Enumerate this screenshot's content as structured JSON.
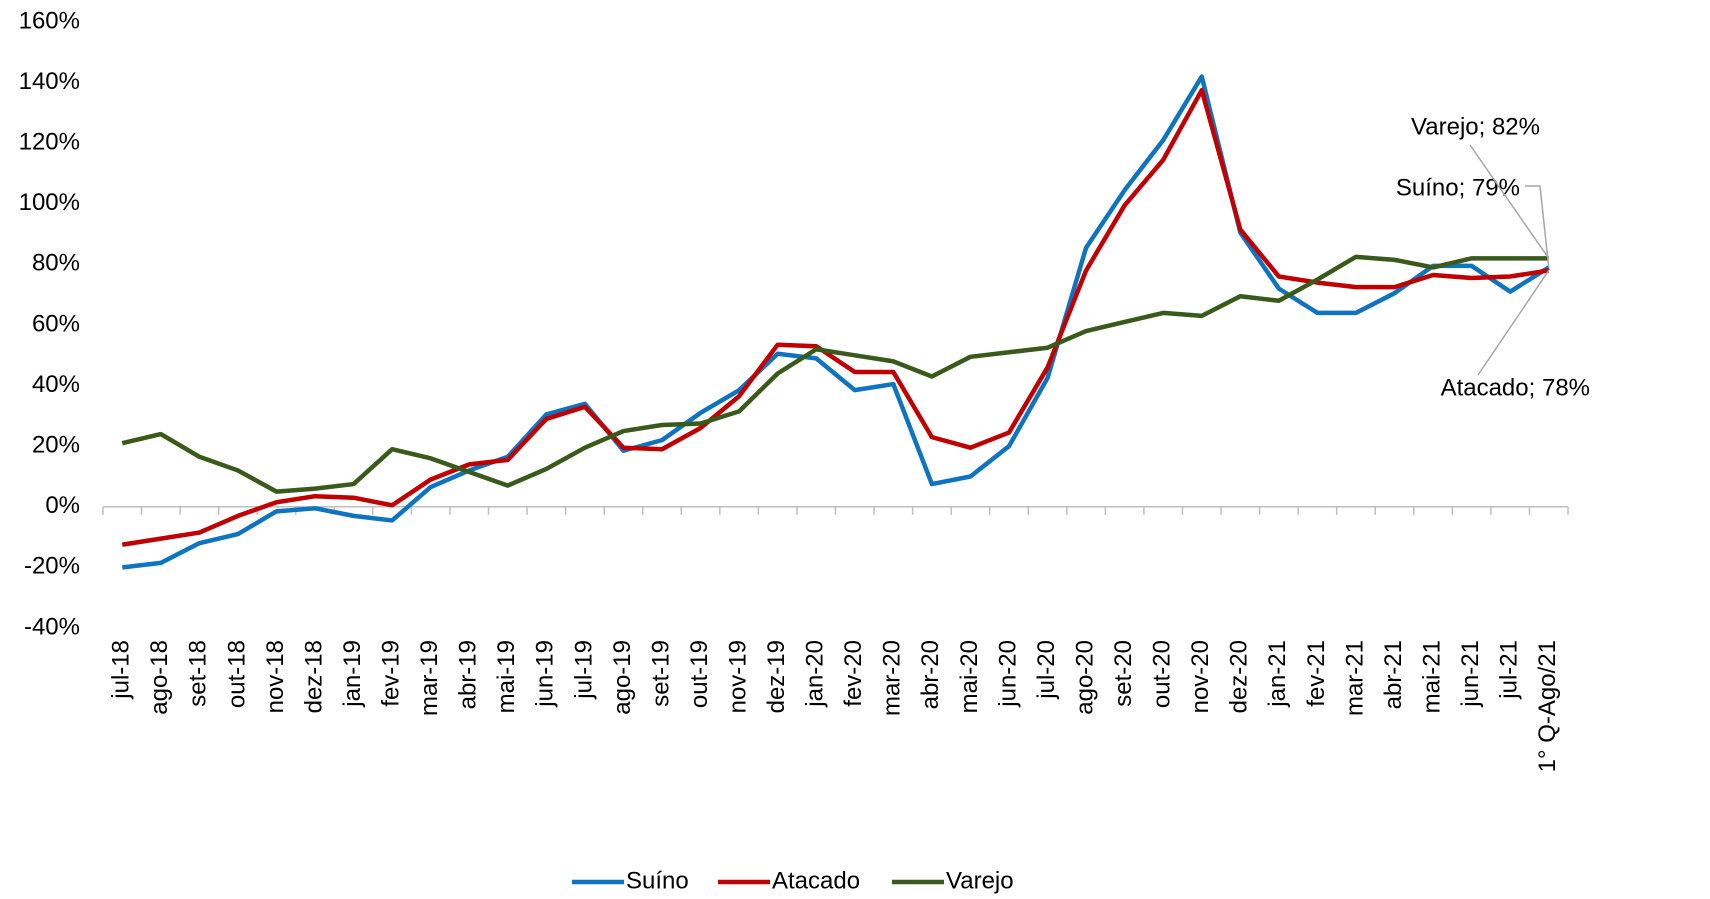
{
  "chart_data": {
    "type": "line",
    "categories": [
      "jul-18",
      "ago-18",
      "set-18",
      "out-18",
      "nov-18",
      "dez-18",
      "jan-19",
      "fev-19",
      "mar-19",
      "abr-19",
      "mai-19",
      "jun-19",
      "jul-19",
      "ago-19",
      "set-19",
      "out-19",
      "nov-19",
      "dez-19",
      "jan-20",
      "fev-20",
      "mar-20",
      "abr-20",
      "mai-20",
      "jun-20",
      "jul-20",
      "ago-20",
      "set-20",
      "out-20",
      "nov-20",
      "dez-20",
      "jan-21",
      "fev-21",
      "mar-21",
      "abr-21",
      "mai-21",
      "jun-21",
      "jul-21",
      "1° Q-Ago/21"
    ],
    "series": [
      {
        "name": "Suíno",
        "color": "#0f74c0",
        "values": [
          -20,
          -18.5,
          -12,
          -9,
          -1.5,
          -0.5,
          -3,
          -4.5,
          6.5,
          12,
          16.5,
          30.5,
          34,
          18.5,
          22,
          31,
          38.5,
          50.5,
          49,
          38.5,
          40.5,
          7.5,
          10,
          20,
          42.5,
          85.5,
          104.5,
          121,
          142,
          90.5,
          72,
          64,
          64,
          70.5,
          79.5,
          79.5,
          71,
          79
        ],
        "value_labels": [
          null,
          null,
          null,
          null,
          null,
          null,
          null,
          null,
          null,
          null,
          null,
          null,
          null,
          null,
          null,
          null,
          null,
          null,
          null,
          null,
          null,
          null,
          null,
          null,
          null,
          null,
          null,
          null,
          null,
          null,
          null,
          null,
          null,
          null,
          null,
          null,
          null,
          "Suíno; 79%"
        ]
      },
      {
        "name": "Atacado",
        "color": "#c00000",
        "values": [
          -12.5,
          -10.5,
          -8.5,
          -3,
          1.5,
          3.5,
          3,
          0.5,
          9,
          14,
          15.5,
          29,
          33,
          19.5,
          19,
          26,
          36.5,
          53.5,
          53,
          44.5,
          44.5,
          23,
          19.5,
          24.5,
          46,
          78,
          99.5,
          114.5,
          137.5,
          91.5,
          76,
          74,
          72.5,
          72.5,
          76.5,
          75.5,
          76,
          78
        ],
        "value_labels": [
          null,
          null,
          null,
          null,
          null,
          null,
          null,
          null,
          null,
          null,
          null,
          null,
          null,
          null,
          null,
          null,
          null,
          null,
          null,
          null,
          null,
          null,
          null,
          null,
          null,
          null,
          null,
          null,
          null,
          null,
          null,
          null,
          null,
          null,
          null,
          null,
          null,
          "Atacado; 78%"
        ]
      },
      {
        "name": "Varejo",
        "color": "#3a5a1c",
        "values": [
          21,
          24,
          16.5,
          12,
          5,
          6,
          7.5,
          19,
          16,
          11.5,
          7,
          12.5,
          19.5,
          25,
          27,
          27.5,
          31.5,
          44,
          52,
          50,
          48,
          43,
          49.5,
          51,
          52.5,
          58,
          61,
          64,
          63,
          69.5,
          68,
          75,
          82.5,
          81.5,
          79,
          82,
          82,
          82
        ],
        "value_labels": [
          null,
          null,
          null,
          null,
          null,
          null,
          null,
          null,
          null,
          null,
          null,
          null,
          null,
          null,
          null,
          null,
          null,
          null,
          null,
          null,
          null,
          null,
          null,
          null,
          null,
          null,
          null,
          null,
          null,
          null,
          null,
          null,
          null,
          null,
          null,
          null,
          null,
          "Varejo; 82%"
        ]
      }
    ],
    "ylim": [
      -40,
      160
    ],
    "yticks": [
      {
        "value": -40,
        "label": "-40%"
      },
      {
        "value": -20,
        "label": "-20%"
      },
      {
        "value": 0,
        "label": "0%"
      },
      {
        "value": 20,
        "label": "20%"
      },
      {
        "value": 40,
        "label": "40%"
      },
      {
        "value": 60,
        "label": "60%"
      },
      {
        "value": 80,
        "label": "80%"
      },
      {
        "value": 100,
        "label": "100%"
      },
      {
        "value": 120,
        "label": "120%"
      },
      {
        "value": 140,
        "label": "140%"
      },
      {
        "value": 160,
        "label": "160%"
      }
    ],
    "grid": false,
    "legend": "bottom"
  }
}
